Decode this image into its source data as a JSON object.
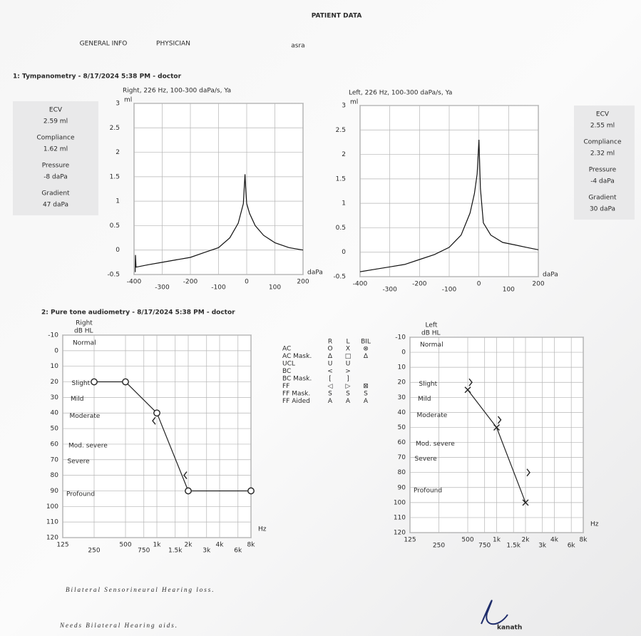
{
  "header": {
    "title": "PATIENT DATA",
    "tabs": [
      "GENERAL INFO",
      "PHYSICIAN"
    ],
    "patient": "asra"
  },
  "tympanometry": {
    "heading": "1: Tympanometry - 8/17/2024 5:38 PM - doctor",
    "right_measures": [
      {
        "label": "ECV",
        "value": "2.59 ml"
      },
      {
        "label": "Compliance",
        "value": "1.62 ml"
      },
      {
        "label": "Pressure",
        "value": "-8 daPa"
      },
      {
        "label": "Gradient",
        "value": "47 daPa"
      }
    ],
    "left_measures": [
      {
        "label": "ECV",
        "value": "2.55 ml"
      },
      {
        "label": "Compliance",
        "value": "2.32 ml"
      },
      {
        "label": "Pressure",
        "value": "-4 daPa"
      },
      {
        "label": "Gradient",
        "value": "30 daPa"
      }
    ]
  },
  "audiometry": {
    "heading": "2: Pure tone audiometry - 8/17/2024 5:38 PM - doctor",
    "levels": [
      "Normal",
      "Slight",
      "Mild",
      "Moderate",
      "Mod. severe",
      "Severe",
      "Profound"
    ],
    "legend": {
      "columns": [
        "R",
        "L",
        "BIL"
      ],
      "rows": [
        {
          "label": "AC",
          "symbols": [
            "O",
            "X",
            "⊗"
          ]
        },
        {
          "label": "AC  Mask.",
          "symbols": [
            "Δ",
            "□",
            "Δ"
          ]
        },
        {
          "label": "UCL",
          "symbols": [
            "U",
            "U",
            null
          ]
        },
        {
          "label": "BC",
          "symbols": [
            "<",
            ">",
            null
          ]
        },
        {
          "label": "BC  Mask.",
          "symbols": [
            "[",
            "]",
            null
          ]
        },
        {
          "label": "FF",
          "symbols": [
            "◁",
            "▷",
            "⊠"
          ]
        },
        {
          "label": "FF  Mask.",
          "symbols": [
            "S",
            "S",
            "S"
          ]
        },
        {
          "label": "FF  Aided",
          "symbols": [
            "A",
            "A",
            "A"
          ]
        }
      ]
    }
  },
  "notes": [
    "Bilateral Sensorineural Hearing loss.",
    "Needs Bilateral Hearing aids."
  ],
  "signature": "kanath",
  "chart_data": [
    {
      "type": "line",
      "title": "Right, 226 Hz, 100-300 daPa/s, Ya",
      "y_label": "ml",
      "x_label": "daPa",
      "xlim": [
        -400,
        200
      ],
      "xticks": [
        -400,
        -300,
        -200,
        -100,
        0,
        100,
        200
      ],
      "ylim": [
        -0.5,
        3
      ],
      "yticks": [
        -0.5,
        0,
        0.5,
        1,
        1.5,
        2,
        2.5,
        3
      ],
      "grid": true,
      "series": [
        {
          "color": "#111111",
          "x": [
            -396,
            -395,
            -393,
            -350,
            -300,
            -250,
            -200,
            -150,
            -100,
            -60,
            -30,
            -12,
            -6,
            -3,
            0,
            10,
            30,
            60,
            100,
            150,
            200
          ],
          "values": [
            -0.45,
            -0.1,
            -0.35,
            -0.3,
            -0.25,
            -0.2,
            -0.15,
            -0.05,
            0.05,
            0.25,
            0.55,
            0.95,
            1.55,
            1.2,
            0.95,
            0.75,
            0.5,
            0.3,
            0.15,
            0.05,
            0
          ]
        }
      ]
    },
    {
      "type": "line",
      "title": "Left, 226 Hz, 100-300 daPa/s, Ya",
      "y_label": "ml",
      "x_label": "daPa",
      "xlim": [
        -400,
        200
      ],
      "xticks": [
        -400,
        -300,
        -200,
        -100,
        0,
        100,
        200
      ],
      "ylim": [
        -0.5,
        3
      ],
      "yticks": [
        -0.5,
        0,
        0.5,
        1,
        1.5,
        2,
        2.5,
        3
      ],
      "grid": true,
      "series": [
        {
          "color": "#111111",
          "x": [
            -400,
            -350,
            -300,
            -250,
            -200,
            -150,
            -100,
            -60,
            -30,
            -15,
            -6,
            0,
            5,
            15,
            40,
            80,
            120,
            160,
            200
          ],
          "values": [
            -0.4,
            -0.35,
            -0.3,
            -0.25,
            -0.15,
            -0.05,
            0.1,
            0.35,
            0.8,
            1.2,
            1.6,
            2.3,
            1.3,
            0.6,
            0.35,
            0.2,
            0.15,
            0.1,
            0.05
          ]
        }
      ]
    },
    {
      "type": "audiogram",
      "title": "Right",
      "y_label": "dB HL",
      "x_label": "Hz",
      "x_log": true,
      "y_inverted": true,
      "xlim": [
        125,
        8000
      ],
      "xticks": [
        125,
        250,
        500,
        750,
        {
          "value": 1000,
          "label": "1k"
        },
        {
          "value": 1500,
          "label": "1.5k"
        },
        {
          "value": 2000,
          "label": "2k"
        },
        {
          "value": 3000,
          "label": "3k"
        },
        {
          "value": 4000,
          "label": "4k"
        },
        {
          "value": 6000,
          "label": "6k"
        },
        {
          "value": 8000,
          "label": "8k"
        }
      ],
      "ylim": [
        -10,
        120
      ],
      "yticks": [
        -10,
        0,
        10,
        20,
        30,
        40,
        50,
        60,
        70,
        80,
        90,
        100,
        110,
        120
      ],
      "grid": true,
      "series": [
        {
          "color": "#222222",
          "marker": "circle",
          "connected": true,
          "x": [
            250,
            500,
            1000,
            2000,
            8000
          ],
          "values": [
            20,
            20,
            40,
            90,
            90
          ]
        },
        {
          "color": "#222222",
          "marker": "left",
          "connected": false,
          "x": [
            1000,
            2000
          ],
          "values": [
            45,
            80
          ]
        }
      ]
    },
    {
      "type": "audiogram",
      "title": "Left",
      "y_label": "dB HL",
      "x_label": "Hz",
      "x_log": true,
      "y_inverted": true,
      "xlim": [
        125,
        8000
      ],
      "xticks": [
        125,
        250,
        500,
        750,
        {
          "value": 1000,
          "label": "1k"
        },
        {
          "value": 1500,
          "label": "1.5k"
        },
        {
          "value": 2000,
          "label": "2k"
        },
        {
          "value": 3000,
          "label": "3k"
        },
        {
          "value": 4000,
          "label": "4k"
        },
        {
          "value": 6000,
          "label": "6k"
        },
        {
          "value": 8000,
          "label": "8k"
        }
      ],
      "ylim": [
        -10,
        120
      ],
      "yticks": [
        -10,
        0,
        10,
        20,
        30,
        40,
        50,
        60,
        70,
        80,
        90,
        100,
        110,
        120
      ],
      "grid": true,
      "series": [
        {
          "color": "#222222",
          "marker": "cross",
          "connected": true,
          "x": [
            500,
            1000,
            2000
          ],
          "values": [
            25,
            50,
            100
          ]
        },
        {
          "color": "#222222",
          "marker": "right",
          "connected": false,
          "x": [
            500,
            1000,
            2000
          ],
          "values": [
            20,
            45,
            80
          ]
        }
      ]
    }
  ]
}
